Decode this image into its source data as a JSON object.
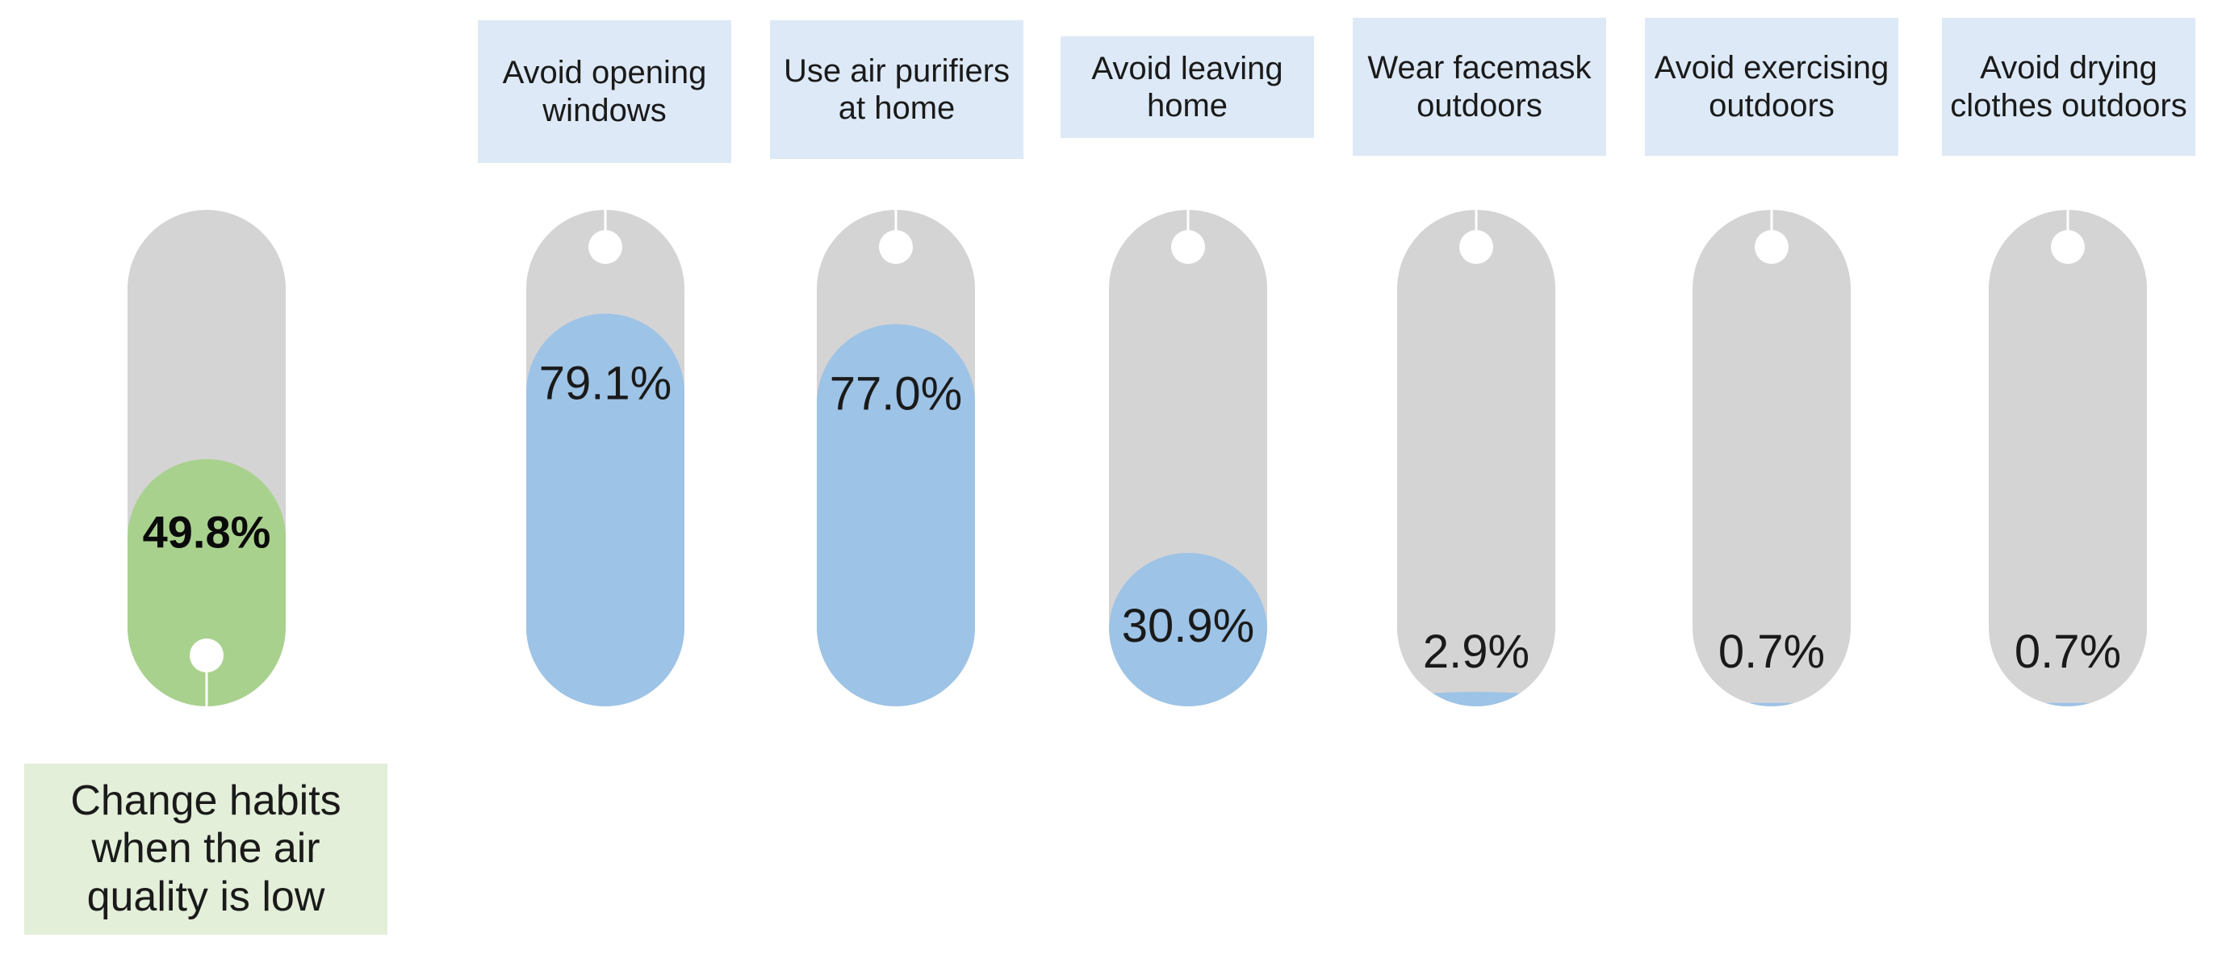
{
  "chart_data": {
    "type": "bar",
    "unit": "%",
    "main": {
      "label": "Change habits when the air quality is low",
      "value": 49.8,
      "value_label": "49.8%",
      "color": "#a9d18e"
    },
    "categories": [
      "Avoid opening windows",
      "Use air purifiers at home",
      "Avoid leaving home",
      "Wear facemask outdoors",
      "Avoid exercising outdoors",
      "Avoid drying clothes outdoors"
    ],
    "values": [
      79.1,
      77.0,
      30.9,
      2.9,
      0.7,
      0.7
    ],
    "value_labels": [
      "79.1%",
      "77.0%",
      "30.9%",
      "2.9%",
      "0.7%",
      "0.7%"
    ],
    "series_color": "#9dc3e6",
    "track_color": "#d5d4d5",
    "ylim": [
      0,
      100
    ],
    "legend": "none",
    "grid": false
  }
}
